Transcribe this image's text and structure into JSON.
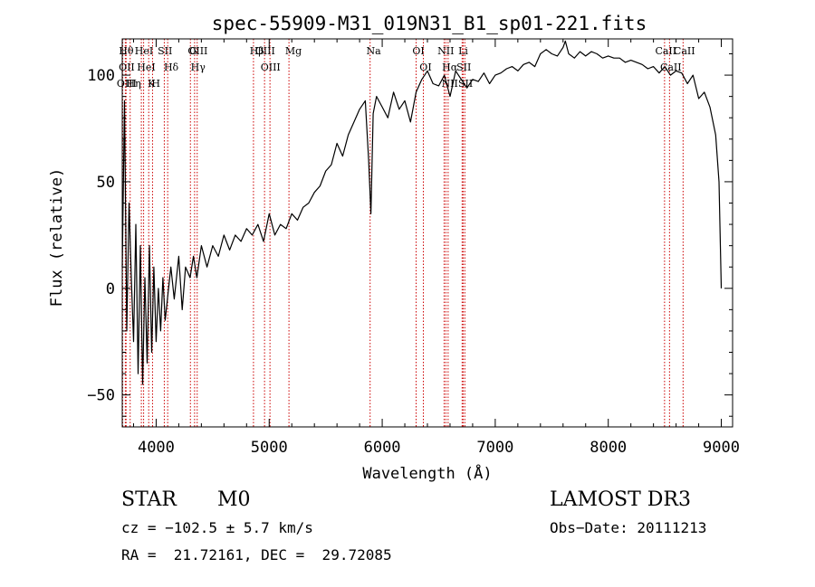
{
  "chart_data": {
    "type": "line",
    "title": "spec-55909-M31_019N31_B1_sp01-221.fits",
    "xlabel": "Wavelength (Å)",
    "ylabel": "Flux (relative)",
    "xlim": [
      3700,
      9100
    ],
    "ylim": [
      -65,
      117
    ],
    "xticks": [
      4000,
      5000,
      6000,
      7000,
      8000,
      9000
    ],
    "yticks": [
      -50,
      0,
      50,
      100
    ],
    "grid": false,
    "series": [
      {
        "name": "flux",
        "color": "#000000",
        "x": [
          3700,
          3720,
          3740,
          3760,
          3780,
          3800,
          3820,
          3840,
          3860,
          3880,
          3900,
          3920,
          3940,
          3960,
          3980,
          4000,
          4020,
          4040,
          4060,
          4080,
          4100,
          4130,
          4160,
          4200,
          4230,
          4260,
          4300,
          4330,
          4360,
          4400,
          4450,
          4500,
          4550,
          4600,
          4650,
          4700,
          4750,
          4800,
          4850,
          4900,
          4950,
          5000,
          5050,
          5100,
          5150,
          5200,
          5250,
          5300,
          5350,
          5400,
          5450,
          5500,
          5550,
          5600,
          5650,
          5700,
          5750,
          5800,
          5850,
          5880,
          5900,
          5920,
          5950,
          6000,
          6050,
          6100,
          6150,
          6200,
          6250,
          6300,
          6350,
          6400,
          6450,
          6500,
          6550,
          6600,
          6650,
          6700,
          6750,
          6800,
          6850,
          6900,
          6950,
          7000,
          7050,
          7100,
          7150,
          7200,
          7250,
          7300,
          7350,
          7400,
          7450,
          7500,
          7550,
          7600,
          7620,
          7650,
          7700,
          7750,
          7800,
          7850,
          7900,
          7950,
          8000,
          8050,
          8100,
          8150,
          8200,
          8250,
          8300,
          8350,
          8400,
          8450,
          8500,
          8550,
          8600,
          8650,
          8700,
          8750,
          8800,
          8850,
          8900,
          8950,
          8980,
          9000
        ],
        "values": [
          10,
          88,
          -20,
          40,
          5,
          -25,
          30,
          -40,
          20,
          -45,
          5,
          -35,
          20,
          -30,
          10,
          -25,
          0,
          -20,
          5,
          -15,
          -5,
          10,
          -5,
          15,
          -10,
          10,
          5,
          15,
          5,
          20,
          10,
          20,
          15,
          25,
          18,
          25,
          22,
          28,
          25,
          30,
          22,
          35,
          25,
          30,
          28,
          35,
          32,
          38,
          40,
          45,
          48,
          55,
          58,
          68,
          62,
          72,
          78,
          84,
          88,
          60,
          35,
          82,
          90,
          85,
          80,
          92,
          84,
          88,
          78,
          92,
          98,
          102,
          96,
          95,
          100,
          90,
          102,
          98,
          94,
          98,
          97,
          101,
          96,
          100,
          101,
          103,
          104,
          102,
          105,
          106,
          104,
          110,
          112,
          110,
          109,
          113,
          116,
          110,
          108,
          111,
          109,
          111,
          110,
          108,
          109,
          108,
          108,
          106,
          107,
          106,
          105,
          103,
          104,
          101,
          104,
          100,
          102,
          101,
          96,
          100,
          89,
          92,
          85,
          72,
          50,
          0
        ]
      }
    ],
    "lines": [
      {
        "x": 3704,
        "label": "Hθ"
      },
      {
        "x": 3727,
        "label": "OII"
      },
      {
        "x": 3734,
        "label": "OIII"
      },
      {
        "x": 3770,
        "label": "Hη"
      },
      {
        "x": 3869,
        "label": "HeI"
      },
      {
        "x": 3889,
        "label": "HeI"
      },
      {
        "x": 3934,
        "label": "K"
      },
      {
        "x": 3968,
        "label": "H"
      },
      {
        "x": 4072,
        "label": "SII"
      },
      {
        "x": 4102,
        "label": "Hδ"
      },
      {
        "x": 4303,
        "label": "G"
      },
      {
        "x": 4340,
        "label": "Hγ"
      },
      {
        "x": 4363,
        "label": "OIII"
      },
      {
        "x": 4861,
        "label": "Hβ"
      },
      {
        "x": 4959,
        "label": "OIII"
      },
      {
        "x": 5007,
        "label": "OIII"
      },
      {
        "x": 5175,
        "label": "Mg"
      },
      {
        "x": 5893,
        "label": "Na"
      },
      {
        "x": 6300,
        "label": "OI"
      },
      {
        "x": 6364,
        "label": "OI"
      },
      {
        "x": 6548,
        "label": "NII"
      },
      {
        "x": 6563,
        "label": "Hα"
      },
      {
        "x": 6583,
        "label": "NII"
      },
      {
        "x": 6707,
        "label": "Li"
      },
      {
        "x": 6716,
        "label": "SII"
      },
      {
        "x": 6731,
        "label": "SII"
      },
      {
        "x": 8498,
        "label": "CaII"
      },
      {
        "x": 8542,
        "label": "CaII"
      },
      {
        "x": 8662,
        "label": "CaII"
      }
    ]
  },
  "info": {
    "class": "STAR",
    "subclass": "M0",
    "survey": "LAMOST DR3",
    "cz": "cz = −102.5 ± 5.7 km/s",
    "obs_date": "Obs−Date: 20111213",
    "coords": "RA =  21.72161, DEC =  29.72085"
  },
  "colors": {
    "line_marker": "#cc0000",
    "spectrum": "#000000",
    "axis": "#000000"
  }
}
